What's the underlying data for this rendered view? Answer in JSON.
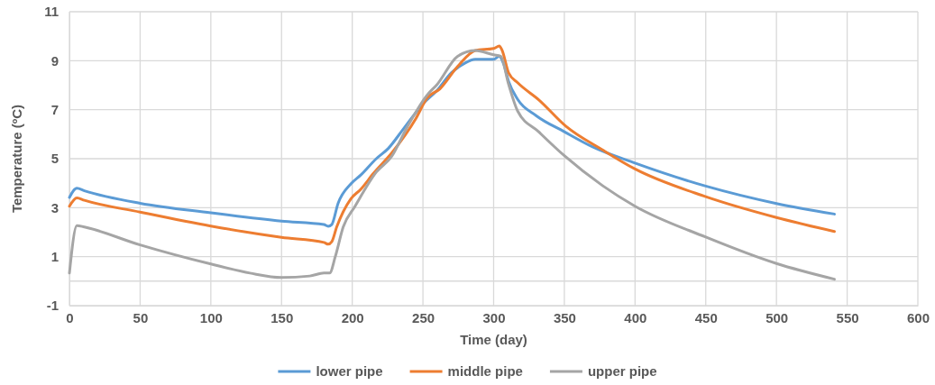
{
  "chart_data": {
    "type": "line",
    "xlabel": "Time (day)",
    "ylabel": "Temperature (ºC)",
    "xlim": [
      0,
      600
    ],
    "xticks": [
      0,
      50,
      100,
      150,
      200,
      250,
      300,
      350,
      400,
      450,
      500,
      550,
      600
    ],
    "ylim": [
      -1,
      11
    ],
    "yticks": [
      -1,
      1,
      3,
      5,
      7,
      9,
      11
    ],
    "grid": true,
    "legend": "bottom",
    "line_style": "solid",
    "marker": "none",
    "ref_lines": [
      {
        "axis": "y",
        "value": 0,
        "color": "#d9d9d9"
      }
    ],
    "series": [
      {
        "name": "lower pipe",
        "color": "#5b9bd5",
        "x": [
          0,
          5.3,
          10.6,
          50,
          100,
          150,
          180,
          183,
          185.5,
          190,
          199,
          206,
          217,
          225.5,
          236,
          250,
          260,
          270,
          279,
          287,
          300,
          304,
          307,
          310.6,
          317,
          330,
          350,
          370,
          400,
          450,
          500,
          541
        ],
        "values": [
          3.42,
          3.79,
          3.69,
          3.18,
          2.79,
          2.45,
          2.31,
          2.24,
          2.31,
          3.18,
          3.97,
          4.33,
          5.0,
          5.42,
          6.2,
          7.24,
          7.79,
          8.5,
          8.88,
          9.06,
          9.06,
          9.18,
          8.88,
          8.15,
          7.42,
          6.76,
          6.1,
          5.48,
          4.82,
          3.88,
          3.17,
          2.74
        ]
      },
      {
        "name": "middle pipe",
        "color": "#ed7d31",
        "x": [
          0,
          5.3,
          10.6,
          50,
          100,
          150,
          180,
          183,
          185.5,
          189,
          199,
          206,
          215,
          228,
          245,
          253,
          262,
          274.5,
          287,
          300,
          304,
          306,
          310.6,
          317,
          332,
          351,
          377,
          400,
          450,
          500,
          541
        ],
        "values": [
          3.06,
          3.4,
          3.3,
          2.82,
          2.25,
          1.79,
          1.58,
          1.51,
          1.61,
          2.21,
          3.36,
          3.75,
          4.4,
          5.24,
          6.64,
          7.48,
          7.85,
          8.76,
          9.42,
          9.5,
          9.6,
          9.42,
          8.5,
          8.1,
          7.4,
          6.33,
          5.36,
          4.58,
          3.45,
          2.6,
          2.03
        ]
      },
      {
        "name": "upper pipe",
        "color": "#a5a5a5",
        "x": [
          0,
          5.3,
          10.6,
          50,
          100,
          127.7,
          150,
          170,
          180,
          184,
          188,
          193.6,
          202,
          217,
          228,
          238,
          253,
          260,
          274.5,
          287,
          300,
          305,
          310.6,
          317,
          332,
          350,
          377,
          400,
          450,
          500,
          541
        ],
        "values": [
          0.33,
          2.27,
          2.21,
          1.48,
          0.7,
          0.33,
          0.15,
          0.21,
          0.33,
          0.33,
          1.0,
          2.21,
          3.06,
          4.45,
          5.1,
          6.2,
          7.6,
          8.03,
          9.18,
          9.42,
          9.24,
          9.18,
          8.03,
          6.94,
          6.09,
          5.12,
          3.9,
          3.06,
          1.8,
          0.72,
          0.08
        ]
      }
    ]
  }
}
